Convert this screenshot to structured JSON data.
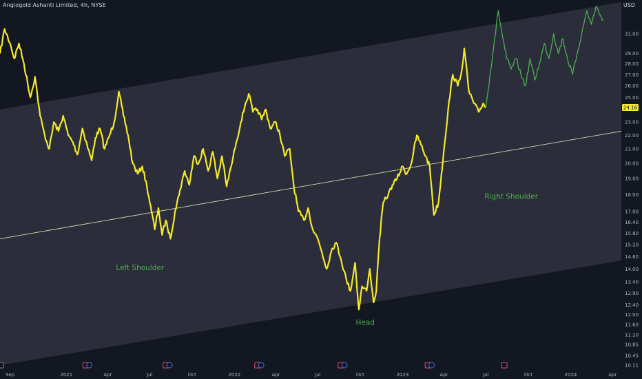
{
  "chart_title": "Anglogold Ashanti Limited, 4h, NYSE",
  "currency": "USD",
  "last_price": "24.16",
  "chart_data": {
    "type": "line",
    "yscale": "log",
    "ylim": [
      10.11,
      34.3
    ],
    "xlim": [
      "2020-08-10",
      "2024-04-20"
    ],
    "grid": false,
    "price_axis_labels": [
      "31.00",
      "29.00",
      "28.00",
      "27.00",
      "26.00",
      "25.00",
      "23.00",
      "22.00",
      "21.00",
      "20.00",
      "19.00",
      "18.00",
      "17.00",
      "16.40",
      "15.80",
      "15.20",
      "14.60",
      "14.00",
      "13.40",
      "12.90",
      "12.40",
      "12.00",
      "11.60",
      "11.20",
      "10.85",
      "10.45",
      "10.11"
    ],
    "time_axis_labels": [
      {
        "label": "Sep",
        "date": "2020-09-01"
      },
      {
        "label": "2021",
        "date": "2021-01-01"
      },
      {
        "label": "Apr",
        "date": "2021-04-01"
      },
      {
        "label": "Jul",
        "date": "2021-07-01"
      },
      {
        "label": "Oct",
        "date": "2021-10-01"
      },
      {
        "label": "2022",
        "date": "2022-01-01"
      },
      {
        "label": "Apr",
        "date": "2022-04-01"
      },
      {
        "label": "Jul",
        "date": "2022-07-01"
      },
      {
        "label": "Oct",
        "date": "2022-10-01"
      },
      {
        "label": "2023",
        "date": "2023-01-01"
      },
      {
        "label": "Apr",
        "date": "2023-04-01"
      },
      {
        "label": "Jul",
        "date": "2023-07-01"
      },
      {
        "label": "Oct",
        "date": "2023-10-01"
      },
      {
        "label": "2024",
        "date": "2024-01-01"
      },
      {
        "label": "Apr",
        "date": "2024-04-01"
      }
    ],
    "series": [
      {
        "color": "#f5e92c",
        "points": [
          [
            "2020-08-10",
            29.0
          ],
          [
            "2020-08-20",
            31.5
          ],
          [
            "2020-09-01",
            30.0
          ],
          [
            "2020-09-10",
            28.5
          ],
          [
            "2020-09-20",
            30.0
          ],
          [
            "2020-10-01",
            28.0
          ],
          [
            "2020-10-15",
            25.0
          ],
          [
            "2020-10-25",
            26.8
          ],
          [
            "2020-11-05",
            23.5
          ],
          [
            "2020-11-15",
            22.0
          ],
          [
            "2020-11-25",
            21.0
          ],
          [
            "2020-12-05",
            23.0
          ],
          [
            "2020-12-15",
            22.3
          ],
          [
            "2020-12-25",
            23.5
          ],
          [
            "2021-01-05",
            22.0
          ],
          [
            "2021-01-15",
            21.5
          ],
          [
            "2021-01-25",
            20.6
          ],
          [
            "2021-02-05",
            22.5
          ],
          [
            "2021-02-15",
            21.3
          ],
          [
            "2021-02-25",
            20.2
          ],
          [
            "2021-03-05",
            21.8
          ],
          [
            "2021-03-15",
            22.5
          ],
          [
            "2021-03-25",
            21.0
          ],
          [
            "2021-04-05",
            22.0
          ],
          [
            "2021-04-15",
            23.0
          ],
          [
            "2021-04-25",
            25.5
          ],
          [
            "2021-05-05",
            23.5
          ],
          [
            "2021-05-15",
            22.0
          ],
          [
            "2021-05-25",
            20.0
          ],
          [
            "2021-06-05",
            19.3
          ],
          [
            "2021-06-15",
            19.8
          ],
          [
            "2021-06-25",
            18.5
          ],
          [
            "2021-07-05",
            17.0
          ],
          [
            "2021-07-12",
            16.0
          ],
          [
            "2021-07-20",
            17.2
          ],
          [
            "2021-07-28",
            15.7
          ],
          [
            "2021-08-05",
            16.5
          ],
          [
            "2021-08-15",
            15.5
          ],
          [
            "2021-08-25",
            17.0
          ],
          [
            "2021-09-05",
            18.3
          ],
          [
            "2021-09-15",
            19.5
          ],
          [
            "2021-09-25",
            18.6
          ],
          [
            "2021-10-05",
            20.5
          ],
          [
            "2021-10-15",
            20.0
          ],
          [
            "2021-10-25",
            21.0
          ],
          [
            "2021-11-05",
            19.5
          ],
          [
            "2021-11-15",
            20.8
          ],
          [
            "2021-11-25",
            19.0
          ],
          [
            "2021-12-05",
            20.5
          ],
          [
            "2021-12-15",
            18.5
          ],
          [
            "2021-12-25",
            19.8
          ],
          [
            "2022-01-05",
            21.5
          ],
          [
            "2022-01-15",
            23.0
          ],
          [
            "2022-01-25",
            24.5
          ],
          [
            "2022-02-01",
            25.3
          ],
          [
            "2022-02-10",
            23.8
          ],
          [
            "2022-02-20",
            24.0
          ],
          [
            "2022-03-01",
            23.2
          ],
          [
            "2022-03-10",
            24.0
          ],
          [
            "2022-03-20",
            22.5
          ],
          [
            "2022-04-01",
            23.0
          ],
          [
            "2022-04-10",
            22.0
          ],
          [
            "2022-04-20",
            20.5
          ],
          [
            "2022-05-01",
            21.0
          ],
          [
            "2022-05-10",
            18.5
          ],
          [
            "2022-05-20",
            17.0
          ],
          [
            "2022-06-01",
            16.5
          ],
          [
            "2022-06-10",
            17.2
          ],
          [
            "2022-06-20",
            16.0
          ],
          [
            "2022-07-01",
            15.5
          ],
          [
            "2022-07-10",
            14.8
          ],
          [
            "2022-07-20",
            14.0
          ],
          [
            "2022-08-01",
            15.0
          ],
          [
            "2022-08-10",
            15.3
          ],
          [
            "2022-08-20",
            14.5
          ],
          [
            "2022-09-01",
            13.5
          ],
          [
            "2022-09-10",
            13.0
          ],
          [
            "2022-09-20",
            14.3
          ],
          [
            "2022-09-28",
            12.2
          ],
          [
            "2022-10-05",
            13.2
          ],
          [
            "2022-10-15",
            13.0
          ],
          [
            "2022-10-22",
            14.0
          ],
          [
            "2022-10-30",
            12.5
          ],
          [
            "2022-11-05",
            13.0
          ],
          [
            "2022-11-12",
            15.5
          ],
          [
            "2022-11-20",
            17.5
          ],
          [
            "2022-12-01",
            18.0
          ],
          [
            "2022-12-10",
            18.6
          ],
          [
            "2022-12-20",
            19.0
          ],
          [
            "2023-01-01",
            19.8
          ],
          [
            "2023-01-10",
            19.3
          ],
          [
            "2023-01-20",
            20.0
          ],
          [
            "2023-02-01",
            22.0
          ],
          [
            "2023-02-10",
            21.3
          ],
          [
            "2023-02-20",
            20.5
          ],
          [
            "2023-03-01",
            19.8
          ],
          [
            "2023-03-10",
            16.8
          ],
          [
            "2023-03-20",
            17.5
          ],
          [
            "2023-04-01",
            21.0
          ],
          [
            "2023-04-10",
            24.0
          ],
          [
            "2023-04-20",
            27.0
          ],
          [
            "2023-05-01",
            26.0
          ],
          [
            "2023-05-10",
            27.5
          ],
          [
            "2023-05-15",
            29.5
          ],
          [
            "2023-05-25",
            25.5
          ],
          [
            "2023-06-05",
            24.5
          ],
          [
            "2023-06-15",
            23.8
          ],
          [
            "2023-06-25",
            24.5
          ],
          [
            "2023-07-01",
            24.16
          ]
        ]
      },
      {
        "color": "#4caf50",
        "points": [
          [
            "2023-07-01",
            24.16
          ],
          [
            "2023-07-10",
            27.0
          ],
          [
            "2023-07-20",
            30.5
          ],
          [
            "2023-07-28",
            33.5
          ],
          [
            "2023-08-05",
            31.0
          ],
          [
            "2023-08-15",
            28.5
          ],
          [
            "2023-08-25",
            27.5
          ],
          [
            "2023-09-05",
            28.5
          ],
          [
            "2023-09-15",
            27.0
          ],
          [
            "2023-09-25",
            26.0
          ],
          [
            "2023-10-05",
            28.5
          ],
          [
            "2023-10-15",
            26.5
          ],
          [
            "2023-10-25",
            28.0
          ],
          [
            "2023-11-05",
            30.0
          ],
          [
            "2023-11-15",
            28.5
          ],
          [
            "2023-11-25",
            31.0
          ],
          [
            "2023-12-05",
            29.0
          ],
          [
            "2023-12-15",
            30.5
          ],
          [
            "2023-12-25",
            28.5
          ],
          [
            "2024-01-05",
            27.0
          ],
          [
            "2024-01-15",
            29.0
          ],
          [
            "2024-01-25",
            31.0
          ],
          [
            "2024-02-05",
            33.5
          ],
          [
            "2024-02-15",
            32.0
          ],
          [
            "2024-02-25",
            34.0
          ],
          [
            "2024-03-05",
            33.0
          ],
          [
            "2024-03-12",
            32.5
          ]
        ]
      }
    ],
    "channel": {
      "lower": [
        [
          "2020-08-10",
          10.11
        ],
        [
          "2024-04-20",
          14.4
        ]
      ],
      "upper": [
        [
          "2020-08-10",
          24.0
        ],
        [
          "2024-04-20",
          34.5
        ]
      ],
      "mid": [
        [
          "2020-08-10",
          15.5
        ],
        [
          "2024-04-20",
          22.3
        ]
      ]
    },
    "annotations": [
      {
        "text": "Left Shoulder",
        "date": "2021-06-10",
        "value": 13.95
      },
      {
        "text": "Head",
        "date": "2022-10-12",
        "value": 11.58
      },
      {
        "text": "Right Shoulder",
        "date": "2023-08-25",
        "value": 17.75
      }
    ],
    "event_markers": [
      {
        "date": "2020-08-12",
        "kind": "settings"
      },
      {
        "date": "2021-02-12",
        "kind": "earnings"
      },
      {
        "date": "2021-02-20",
        "kind": "dividend"
      },
      {
        "date": "2021-08-05",
        "kind": "earnings"
      },
      {
        "date": "2021-08-13",
        "kind": "dividend"
      },
      {
        "date": "2022-02-20",
        "kind": "earnings"
      },
      {
        "date": "2022-02-28",
        "kind": "dividend"
      },
      {
        "date": "2022-08-20",
        "kind": "earnings"
      },
      {
        "date": "2022-08-28",
        "kind": "dividend"
      },
      {
        "date": "2023-02-25",
        "kind": "earnings"
      },
      {
        "date": "2023-03-05",
        "kind": "dividend"
      },
      {
        "date": "2023-08-10",
        "kind": "earnings"
      }
    ],
    "colors": {
      "background": "#131722",
      "channel_fill": "#2b2e3a",
      "mid_line": "#d8dbb0",
      "axis_text": "#b2b5be",
      "annotation": "#4caf50",
      "earnings": "#e0506a",
      "dividend": "#4a6fe3",
      "price_tag": "#f5e92c"
    }
  }
}
